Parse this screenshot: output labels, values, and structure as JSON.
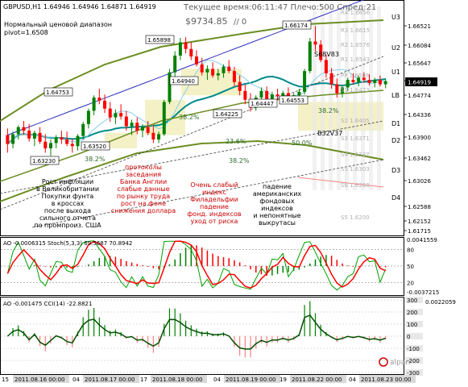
{
  "header": {
    "symbol": "GBPUSD,H1",
    "ohlc": "1.64946 1.64946 1.64871 1.64919",
    "server_time": "Текущее время:06:11:47 Плечо:500 Спред:21",
    "balance": "$9734.85",
    "zero": "// 0",
    "range_caption": "Нормальный ценовой диапазон",
    "pivot": "pivot=1.6508"
  },
  "price_axis": {
    "labels": [
      "1.66521",
      "1.66084",
      "1.65647",
      "1.65210",
      "1.64919",
      "1.64774",
      "1.64336",
      "1.63900",
      "1.63462",
      "1.63026",
      "1.62588",
      "1.62152",
      "1.61715"
    ],
    "current": "1.64919"
  },
  "levels": {
    "R4": "R4 1.6656",
    "R3": "R3 1.6615",
    "R2": "R2 1.6576",
    "R1": "R1 1.6543",
    "PP": "PP 1.6508",
    "S1": "S1 1.6473",
    "S2": "S2 1.6405",
    "S3": "S3 1.6371",
    "S4": "S4 1.6337",
    "S5": "S5 1.6303",
    "S6": "S6 1.6268",
    "S7": "S5 1.6200"
  },
  "channel_labels": [
    "U3",
    "U2",
    "U1",
    "LB",
    "D1",
    "D2",
    "D3",
    "D4"
  ],
  "price_labels": [
    "1.64753",
    "1.65898",
    "1.64940",
    "1.66174",
    "1.64225",
    "1.64447",
    "1.64553",
    "1.63520",
    "1.63230"
  ],
  "tags": [
    "S68V83",
    "B32V37"
  ],
  "fib_labels": [
    "38.2%",
    "38.2%",
    "38.2%",
    "23.6%",
    "38.2%",
    "50.0%"
  ],
  "annotations": [
    "Рост инфляции\nв Великобритании\nПокупки фунта\nв кроссах\nпосле выхода\nсильного отчета\nпо промпроиз. США",
    "протоколы\nзаседания\nБанка Англии\nслабые данные\nпо рынку труда\nрост на фоне\nснижения доллара",
    "Очень слабый\nиндекс\nФиладельфии\nпадение\nфонд. индексов\nуход от риска",
    "падение\nамериканских\nфондовых\nиндексов\nи непонятные\nвыкрутасы"
  ],
  "stoch_panel": {
    "label": "AO -0.0006315  Stoch(5,3,3) 69.5687 70.8942",
    "axis": [
      "0.0041559",
      "80",
      "50",
      "20",
      "-0.0037215"
    ]
  },
  "cci_panel": {
    "label": "AO -0.001475  CCI(14) -22.8821",
    "axis": [
      "0.0022059",
      "300",
      "200",
      "100",
      "0",
      "-100",
      "-200",
      "-300"
    ]
  },
  "time_axis": {
    "labels": [
      "2011.08.16 00:00",
      "2011.08.17 00:00",
      "2011.08.18 00:00",
      "2011.08.19 00:00",
      "2011.08.22 00:00",
      "2011.08.23 00:00"
    ],
    "edge_labels": [
      "15",
      "04",
      "17",
      "04",
      "19",
      "04"
    ]
  },
  "broker_logo": "alpari",
  "colors": {
    "up": "#008000",
    "down": "#ff0000",
    "ma_teal": "#008b8b",
    "ma_blue": "#3030c0",
    "channel_olive": "#6b8e23",
    "fib_band": "#f3f0c0",
    "stoch_k": "#00a000",
    "stoch_d": "#ff0000"
  },
  "chart_data": {
    "type": "candlestick",
    "symbol": "GBPUSD",
    "timeframe": "H1",
    "ylim": [
      1.615,
      1.6665
    ],
    "candles": [
      [
        1.637,
        1.6385,
        1.633,
        1.635
      ],
      [
        1.635,
        1.6378,
        1.634,
        1.6372
      ],
      [
        1.6372,
        1.6392,
        1.636,
        1.6388
      ],
      [
        1.6388,
        1.6402,
        1.637,
        1.638
      ],
      [
        1.638,
        1.6395,
        1.6355,
        1.6362
      ],
      [
        1.6362,
        1.638,
        1.6345,
        1.6375
      ],
      [
        1.6375,
        1.6388,
        1.635,
        1.6355
      ],
      [
        1.6355,
        1.6372,
        1.633,
        1.634
      ],
      [
        1.634,
        1.636,
        1.6323,
        1.6352
      ],
      [
        1.6352,
        1.637,
        1.634,
        1.6365
      ],
      [
        1.6365,
        1.638,
        1.635,
        1.636
      ],
      [
        1.636,
        1.6378,
        1.6345,
        1.635
      ],
      [
        1.635,
        1.6362,
        1.633,
        1.6345
      ],
      [
        1.6345,
        1.6372,
        1.6335,
        1.6368
      ],
      [
        1.6368,
        1.64,
        1.636,
        1.6395
      ],
      [
        1.6395,
        1.643,
        1.6385,
        1.6425
      ],
      [
        1.6425,
        1.646,
        1.6415,
        1.6455
      ],
      [
        1.6455,
        1.6475,
        1.644,
        1.6448
      ],
      [
        1.6448,
        1.6462,
        1.642,
        1.643
      ],
      [
        1.643,
        1.6445,
        1.64,
        1.641
      ],
      [
        1.641,
        1.6428,
        1.6395,
        1.642
      ],
      [
        1.642,
        1.644,
        1.6405,
        1.6412
      ],
      [
        1.6412,
        1.6425,
        1.638,
        1.639
      ],
      [
        1.639,
        1.6405,
        1.637,
        1.6398
      ],
      [
        1.6398,
        1.641,
        1.6372,
        1.638
      ],
      [
        1.638,
        1.6395,
        1.6365,
        1.6388
      ],
      [
        1.6388,
        1.6402,
        1.637,
        1.6375
      ],
      [
        1.6375,
        1.6392,
        1.6352,
        1.636
      ],
      [
        1.636,
        1.6378,
        1.6352,
        1.6372
      ],
      [
        1.6372,
        1.645,
        1.6368,
        1.6445
      ],
      [
        1.6445,
        1.652,
        1.644,
        1.6512
      ],
      [
        1.6512,
        1.656,
        1.65,
        1.655
      ],
      [
        1.655,
        1.659,
        1.654,
        1.658
      ],
      [
        1.658,
        1.6592,
        1.6555,
        1.6565
      ],
      [
        1.6565,
        1.658,
        1.654,
        1.6548
      ],
      [
        1.6548,
        1.6562,
        1.6525,
        1.653
      ],
      [
        1.653,
        1.6545,
        1.6505,
        1.6512
      ],
      [
        1.6512,
        1.6528,
        1.6495,
        1.652
      ],
      [
        1.652,
        1.6535,
        1.65,
        1.6505
      ],
      [
        1.6505,
        1.652,
        1.6494,
        1.651
      ],
      [
        1.651,
        1.653,
        1.65,
        1.6525
      ],
      [
        1.6525,
        1.654,
        1.651,
        1.6515
      ],
      [
        1.6515,
        1.6525,
        1.648,
        1.649
      ],
      [
        1.649,
        1.6505,
        1.646,
        1.647
      ],
      [
        1.647,
        1.6485,
        1.644,
        1.645
      ],
      [
        1.645,
        1.6465,
        1.6423,
        1.6432
      ],
      [
        1.6432,
        1.646,
        1.6425,
        1.6455
      ],
      [
        1.6455,
        1.6478,
        1.6445,
        1.647
      ],
      [
        1.647,
        1.648,
        1.6444,
        1.6452
      ],
      [
        1.6452,
        1.6468,
        1.6445,
        1.6462
      ],
      [
        1.6462,
        1.6475,
        1.645,
        1.6458
      ],
      [
        1.6458,
        1.647,
        1.6446,
        1.6465
      ],
      [
        1.6465,
        1.6478,
        1.6452,
        1.6455
      ],
      [
        1.6455,
        1.6465,
        1.6447,
        1.646
      ],
      [
        1.646,
        1.6475,
        1.645,
        1.6468
      ],
      [
        1.6468,
        1.652,
        1.6462,
        1.6515
      ],
      [
        1.6515,
        1.659,
        1.651,
        1.6582
      ],
      [
        1.6582,
        1.6617,
        1.656,
        1.6575
      ],
      [
        1.6575,
        1.6585,
        1.6535,
        1.654
      ],
      [
        1.654,
        1.6552,
        1.65,
        1.651
      ],
      [
        1.651,
        1.6522,
        1.6475,
        1.6485
      ],
      [
        1.6485,
        1.6498,
        1.6455,
        1.6465
      ],
      [
        1.6465,
        1.6482,
        1.6455,
        1.6478
      ],
      [
        1.6478,
        1.65,
        1.647,
        1.6495
      ],
      [
        1.6495,
        1.651,
        1.6485,
        1.649
      ],
      [
        1.649,
        1.6505,
        1.648,
        1.65
      ],
      [
        1.65,
        1.6512,
        1.6488,
        1.6495
      ],
      [
        1.6495,
        1.6508,
        1.6482,
        1.6488
      ],
      [
        1.6488,
        1.65,
        1.6478,
        1.6495
      ],
      [
        1.6495,
        1.6505,
        1.648,
        1.6485
      ],
      [
        1.6485,
        1.6498,
        1.6476,
        1.6492
      ]
    ]
  }
}
